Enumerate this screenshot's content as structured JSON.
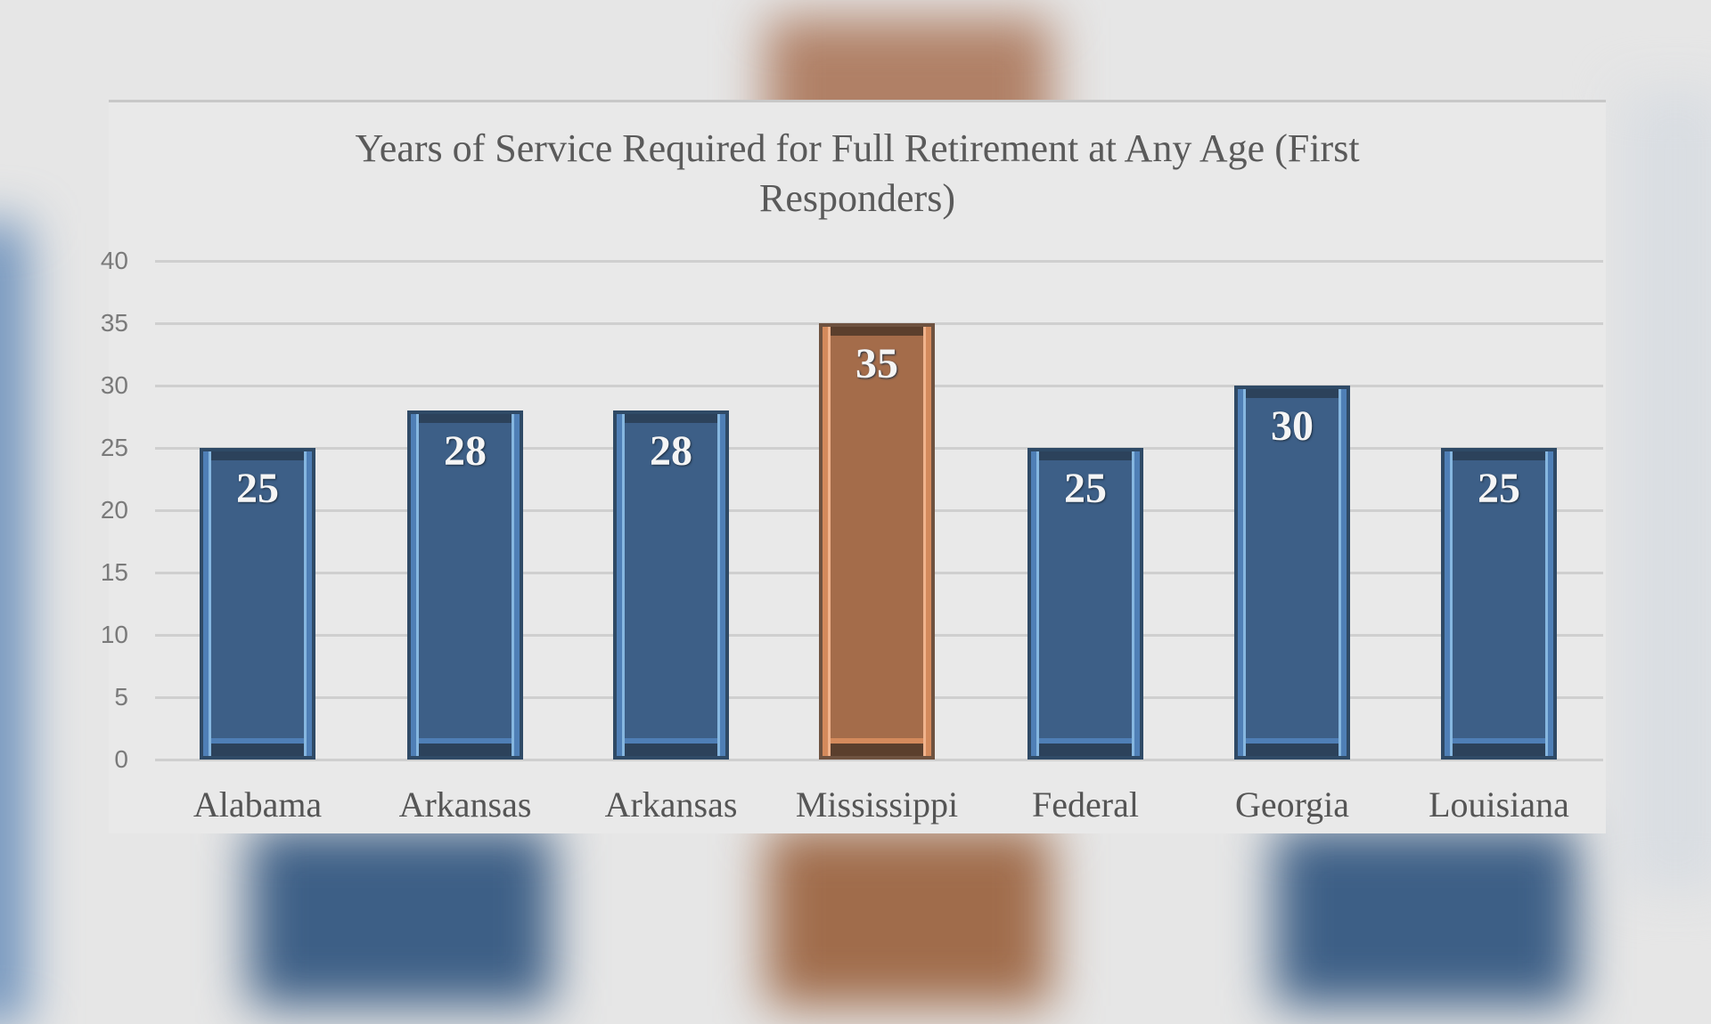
{
  "chart_data": {
    "type": "bar",
    "title": "Years of Service Required for Full Retirement  at Any Age (First Responders)",
    "title_lines": [
      "Years of Service Required for Full Retirement  at Any Age (First",
      "Responders)"
    ],
    "categories": [
      "Alabama",
      "Arkansas",
      "Arkansas",
      "Mississippi",
      "Federal",
      "Georgia",
      "Louisiana"
    ],
    "values": [
      25,
      28,
      28,
      35,
      25,
      30,
      25
    ],
    "data_labels": [
      "25",
      "28",
      "28",
      "35",
      "25",
      "30",
      "25"
    ],
    "highlight_index": 3,
    "xlabel": "",
    "ylabel": "",
    "ylim": [
      0,
      40
    ],
    "yticks": [
      "40",
      "35",
      "30",
      "25",
      "20",
      "15",
      "10",
      "5",
      "0"
    ],
    "grid": true,
    "legend": null,
    "colors": {
      "bar": "#3d5f87",
      "highlight": "#a46c4a",
      "background": "#e9e9e9"
    }
  }
}
